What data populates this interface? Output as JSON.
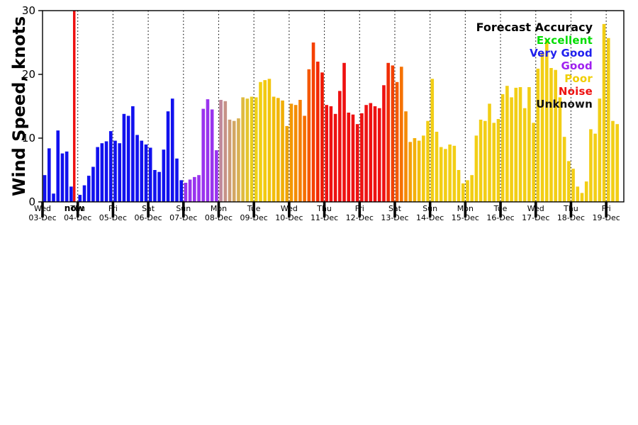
{
  "figure": {
    "background": "#ffffff"
  },
  "chart_data": {
    "type": "bar",
    "title": "",
    "ylabel": "Wind Speed, knots",
    "xlabel": "",
    "ylim": [
      0,
      30
    ],
    "yticks": [
      0,
      10,
      20,
      30
    ],
    "x_range_days": [
      0,
      16.5
    ],
    "slots_per_day": 8,
    "bar_interval_hours": 3,
    "grid": "vertical-dotted-per-day",
    "now": {
      "t_days": 0.9,
      "label": "now",
      "color": "#ee1111"
    },
    "x_days": [
      {
        "day": "Wed",
        "date": "03-Dec"
      },
      {
        "day": "Thu",
        "date": "04-Dec"
      },
      {
        "day": "Fri",
        "date": "05-Dec"
      },
      {
        "day": "Sat",
        "date": "06-Dec"
      },
      {
        "day": "Sun",
        "date": "07-Dec"
      },
      {
        "day": "Mon",
        "date": "08-Dec"
      },
      {
        "day": "Tue",
        "date": "09-Dec"
      },
      {
        "day": "Wed",
        "date": "10-Dec"
      },
      {
        "day": "Thu",
        "date": "11-Dec"
      },
      {
        "day": "Fri",
        "date": "12-Dec"
      },
      {
        "day": "Sat",
        "date": "13-Dec"
      },
      {
        "day": "Sun",
        "date": "14-Dec"
      },
      {
        "day": "Mon",
        "date": "15-Dec"
      },
      {
        "day": "Tue",
        "date": "16-Dec"
      },
      {
        "day": "Wed",
        "date": "17-Dec"
      },
      {
        "day": "Thu",
        "date": "18-Dec"
      },
      {
        "day": "Fri",
        "date": "19-Dec"
      }
    ],
    "legend": {
      "title": "Forecast Accuracy",
      "position": "top-right",
      "entries": [
        {
          "label": "Excellent",
          "color": "#00dd00"
        },
        {
          "label": "Very Good",
          "color": "#2020ee"
        },
        {
          "label": "Good",
          "color": "#a020f0"
        },
        {
          "label": "Poor",
          "color": "#f0ce00"
        },
        {
          "label": "Noise",
          "color": "#ee1111"
        },
        {
          "label": "Unknown",
          "color": "#111111"
        }
      ]
    },
    "bars": [
      [
        0,
        4.2,
        "#1111ee"
      ],
      [
        1,
        8.4,
        "#1111ee"
      ],
      [
        2,
        1.3,
        "#1111ee"
      ],
      [
        3,
        11.2,
        "#1111ee"
      ],
      [
        4,
        7.6,
        "#1111ee"
      ],
      [
        5,
        7.9,
        "#1111ee"
      ],
      [
        6,
        2.4,
        "#1111ee"
      ],
      [
        8,
        1.1,
        "#1111ee"
      ],
      [
        9,
        2.6,
        "#1111ee"
      ],
      [
        10,
        4.1,
        "#1111ee"
      ],
      [
        11,
        5.5,
        "#1111ee"
      ],
      [
        12,
        8.6,
        "#1111ee"
      ],
      [
        13,
        9.2,
        "#1111ee"
      ],
      [
        14,
        9.5,
        "#1111ee"
      ],
      [
        15,
        11.1,
        "#1111ee"
      ],
      [
        16,
        9.6,
        "#1111ee"
      ],
      [
        17,
        9.2,
        "#1111ee"
      ],
      [
        18,
        13.8,
        "#1111ee"
      ],
      [
        19,
        13.5,
        "#1111ee"
      ],
      [
        20,
        15.0,
        "#1111ee"
      ],
      [
        21,
        10.5,
        "#1111ee"
      ],
      [
        22,
        9.6,
        "#1111ee"
      ],
      [
        23,
        9.0,
        "#1111ee"
      ],
      [
        24,
        8.5,
        "#1111ee"
      ],
      [
        25,
        5.0,
        "#1111ee"
      ],
      [
        26,
        4.7,
        "#1111ee"
      ],
      [
        27,
        8.2,
        "#1111ee"
      ],
      [
        28,
        14.2,
        "#1111ee"
      ],
      [
        29,
        16.2,
        "#1111ee"
      ],
      [
        30,
        6.8,
        "#1111ee"
      ],
      [
        31,
        3.4,
        "#1111ee"
      ],
      [
        32,
        3.0,
        "#9933ee"
      ],
      [
        33,
        3.5,
        "#9933ee"
      ],
      [
        34,
        3.9,
        "#9933ee"
      ],
      [
        35,
        4.2,
        "#9933ee"
      ],
      [
        36,
        14.6,
        "#9933ee"
      ],
      [
        37,
        16.1,
        "#9933ee"
      ],
      [
        38,
        14.5,
        "#9933ee"
      ],
      [
        39,
        8.1,
        "#9933ee"
      ],
      [
        40,
        16.0,
        "#c0889a"
      ],
      [
        41,
        15.8,
        "#c69288"
      ],
      [
        42,
        12.9,
        "#cc9c76"
      ],
      [
        43,
        12.7,
        "#d2a664"
      ],
      [
        44,
        13.1,
        "#d8b052"
      ],
      [
        45,
        16.4,
        "#deba40"
      ],
      [
        46,
        16.2,
        "#e4c42e"
      ],
      [
        47,
        16.5,
        "#eace1c"
      ],
      [
        48,
        16.4,
        "#f0d216"
      ],
      [
        49,
        18.8,
        "#f1ce12"
      ],
      [
        50,
        19.1,
        "#f2ca10"
      ],
      [
        51,
        19.3,
        "#f2c40d"
      ],
      [
        52,
        16.5,
        "#f2be0b"
      ],
      [
        53,
        16.3,
        "#f1b609"
      ],
      [
        54,
        15.9,
        "#f0ae07"
      ],
      [
        55,
        11.9,
        "#efa406"
      ],
      [
        56,
        15.4,
        "#f39805"
      ],
      [
        57,
        15.2,
        "#f48c04"
      ],
      [
        58,
        16.0,
        "#f57e03"
      ],
      [
        59,
        13.5,
        "#f56e02"
      ],
      [
        60,
        20.8,
        "#f55801"
      ],
      [
        61,
        25.0,
        "#f54000"
      ],
      [
        62,
        22.0,
        "#f22800"
      ],
      [
        63,
        20.3,
        "#ef1800"
      ],
      [
        64,
        15.2,
        "#ee1111"
      ],
      [
        65,
        15.0,
        "#ee1111"
      ],
      [
        66,
        13.8,
        "#ee1111"
      ],
      [
        67,
        17.4,
        "#ee1111"
      ],
      [
        68,
        21.8,
        "#ee1111"
      ],
      [
        69,
        14.0,
        "#ee1111"
      ],
      [
        70,
        13.7,
        "#ee1111"
      ],
      [
        71,
        12.2,
        "#ee1111"
      ],
      [
        72,
        13.9,
        "#ee1111"
      ],
      [
        73,
        15.2,
        "#ee1111"
      ],
      [
        74,
        15.5,
        "#ee1111"
      ],
      [
        75,
        15.0,
        "#ee1111"
      ],
      [
        76,
        14.7,
        "#ee1111"
      ],
      [
        77,
        18.3,
        "#ee1111"
      ],
      [
        78,
        21.8,
        "#f02d06"
      ],
      [
        79,
        21.4,
        "#f24203"
      ],
      [
        80,
        18.8,
        "#f45a02"
      ],
      [
        81,
        21.2,
        "#f57202"
      ],
      [
        82,
        14.2,
        "#f58a05"
      ],
      [
        83,
        9.4,
        "#f4a008"
      ],
      [
        84,
        10.0,
        "#f4b00b"
      ],
      [
        85,
        9.6,
        "#f3be0e"
      ],
      [
        86,
        10.4,
        "#f3c811"
      ],
      [
        87,
        12.7,
        "#f2ce14"
      ],
      [
        88,
        19.3,
        "#f2ce15"
      ],
      [
        89,
        11.0,
        "#f2ce15"
      ],
      [
        90,
        8.6,
        "#f2ce15"
      ],
      [
        91,
        8.3,
        "#f2ce15"
      ],
      [
        92,
        9.0,
        "#f2ce15"
      ],
      [
        93,
        8.8,
        "#f2ce15"
      ],
      [
        94,
        5.0,
        "#f2ce15"
      ],
      [
        95,
        2.9,
        "#f2ce15"
      ],
      [
        96,
        3.4,
        "#f2ce15"
      ],
      [
        97,
        4.2,
        "#f2ce15"
      ],
      [
        98,
        10.4,
        "#f2ce15"
      ],
      [
        99,
        12.9,
        "#f2ce15"
      ],
      [
        100,
        12.7,
        "#f2ce15"
      ],
      [
        101,
        15.4,
        "#f2ce15"
      ],
      [
        102,
        12.4,
        "#f2ce15"
      ],
      [
        103,
        13.0,
        "#f2ce15"
      ],
      [
        104,
        16.9,
        "#f2ce15"
      ],
      [
        105,
        18.2,
        "#f2ce15"
      ],
      [
        106,
        16.4,
        "#f2ce15"
      ],
      [
        107,
        17.9,
        "#f2ce15"
      ],
      [
        108,
        18.0,
        "#f2ce15"
      ],
      [
        109,
        14.7,
        "#f2ce15"
      ],
      [
        110,
        18.0,
        "#f2ce15"
      ],
      [
        111,
        12.4,
        "#f2ce15"
      ],
      [
        112,
        20.9,
        "#f2ce15"
      ],
      [
        113,
        23.4,
        "#f2ce15"
      ],
      [
        114,
        25.4,
        "#f2ce15"
      ],
      [
        115,
        21.0,
        "#f2ce15"
      ],
      [
        116,
        20.7,
        "#f2ce15"
      ],
      [
        117,
        16.4,
        "#f2ce15"
      ],
      [
        118,
        10.2,
        "#f2ce15"
      ],
      [
        119,
        6.4,
        "#f2ce15"
      ],
      [
        120,
        5.2,
        "#f2ce15"
      ],
      [
        121,
        2.4,
        "#f2ce15"
      ],
      [
        122,
        1.4,
        "#f2ce15"
      ],
      [
        123,
        3.2,
        "#f2ce15"
      ],
      [
        124,
        11.4,
        "#f2ce15"
      ],
      [
        125,
        10.7,
        "#f2ce15"
      ],
      [
        126,
        16.2,
        "#f2ce15"
      ],
      [
        127,
        27.9,
        "#f2ce15"
      ],
      [
        128,
        25.7,
        "#f2ce15"
      ],
      [
        129,
        12.7,
        "#f2ce15"
      ],
      [
        130,
        12.2,
        "#f2ce15"
      ]
    ]
  }
}
